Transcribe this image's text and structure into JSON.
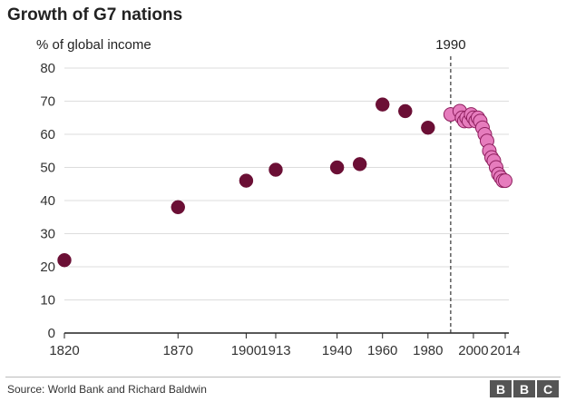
{
  "title": "Growth of G7 nations",
  "footer": {
    "source": "Source: World Bank and Richard Baldwin",
    "logo_letters": [
      "B",
      "B",
      "C"
    ]
  },
  "colors": {
    "historical": "#6b0f35",
    "post1990": "#e67cbd",
    "post1990_stroke": "#8e1f5e",
    "axis": "#222222",
    "grid": "#dddddd"
  },
  "chart_data": {
    "type": "scatter",
    "ylabel": "% of global income",
    "ylim": [
      0,
      80
    ],
    "yticks": [
      0,
      10,
      20,
      30,
      40,
      50,
      60,
      70,
      80
    ],
    "xlim": [
      1820,
      2014
    ],
    "xticks": [
      1820,
      1870,
      1900,
      1913,
      1940,
      1960,
      1980,
      2000,
      2014
    ],
    "grid": true,
    "annotation": {
      "x": 1990,
      "label": "1990",
      "style": "dashed vertical line"
    },
    "series": [
      {
        "points": [
          {
            "x": 1820,
            "y": 22
          },
          {
            "x": 1870,
            "y": 38
          },
          {
            "x": 1900,
            "y": 46
          },
          {
            "x": 1913,
            "y": 49.3
          },
          {
            "x": 1940,
            "y": 50
          },
          {
            "x": 1950,
            "y": 51
          },
          {
            "x": 1960,
            "y": 69
          },
          {
            "x": 1970,
            "y": 67
          },
          {
            "x": 1980,
            "y": 62
          }
        ]
      },
      {
        "points": [
          {
            "x": 1990,
            "y": 66
          },
          {
            "x": 1994,
            "y": 67
          },
          {
            "x": 1995,
            "y": 65
          },
          {
            "x": 1996,
            "y": 64
          },
          {
            "x": 1997,
            "y": 65
          },
          {
            "x": 1998,
            "y": 64
          },
          {
            "x": 1999,
            "y": 66
          },
          {
            "x": 2000,
            "y": 65
          },
          {
            "x": 2001,
            "y": 64
          },
          {
            "x": 2002,
            "y": 65
          },
          {
            "x": 2003,
            "y": 64
          },
          {
            "x": 2004,
            "y": 62
          },
          {
            "x": 2005,
            "y": 60
          },
          {
            "x": 2006,
            "y": 58
          },
          {
            "x": 2007,
            "y": 55
          },
          {
            "x": 2008,
            "y": 53
          },
          {
            "x": 2009,
            "y": 52
          },
          {
            "x": 2010,
            "y": 50
          },
          {
            "x": 2011,
            "y": 48
          },
          {
            "x": 2012,
            "y": 47
          },
          {
            "x": 2013,
            "y": 46
          },
          {
            "x": 2014,
            "y": 46
          }
        ]
      }
    ]
  }
}
